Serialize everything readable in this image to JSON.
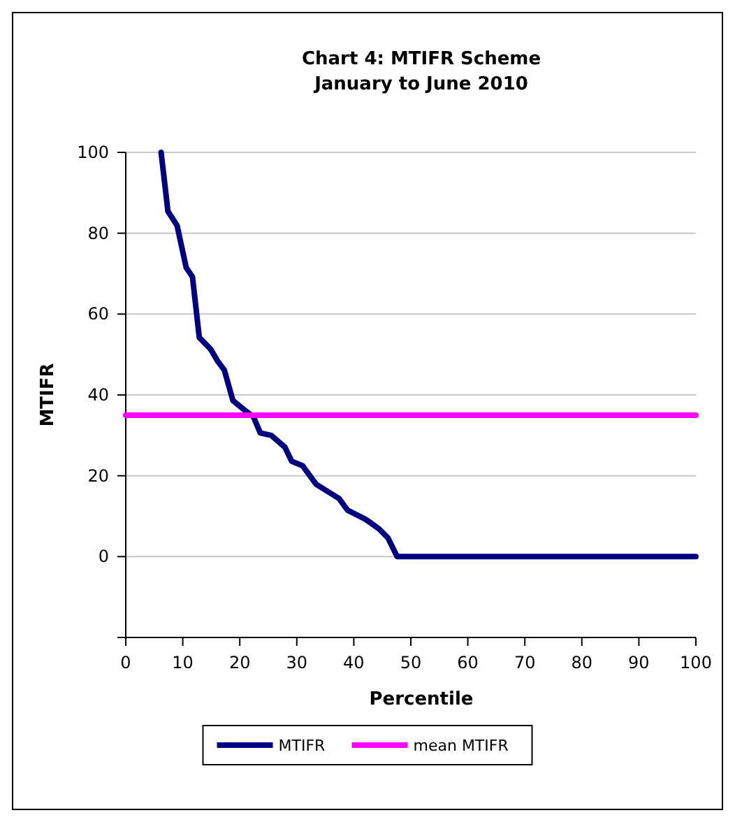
{
  "chart_data": {
    "type": "line",
    "title": "Chart 4: MTIFR Scheme\nJanuary to June 2010",
    "xlabel": "Percentile",
    "ylabel": "MTIFR",
    "xlim": [
      0,
      100
    ],
    "xticks": [
      0,
      10,
      20,
      30,
      40,
      50,
      60,
      70,
      80,
      90,
      100
    ],
    "ylim": [
      -20,
      100
    ],
    "yticks": [
      {
        "value": -20,
        "label": null
      },
      0,
      20,
      40,
      60,
      80,
      100
    ],
    "grid": "y",
    "legend": "bottom",
    "marker": "none",
    "line_style": "solid",
    "series": [
      {
        "name": "MTIFR",
        "color": "#000080",
        "x": [
          6.2,
          7.4,
          9.0,
          10.6,
          11.7,
          12.9,
          14.9,
          16.1,
          17.3,
          18.8,
          20.8,
          22.4,
          23.6,
          25.5,
          27.9,
          29.1,
          31.0,
          33.4,
          37.4,
          38.9,
          42.1,
          44.4,
          46.0,
          47.6,
          100
        ],
        "values": [
          100,
          85.4,
          81.9,
          71.5,
          69.2,
          54.2,
          51.3,
          48.4,
          46.1,
          38.6,
          36.3,
          34.6,
          30.6,
          30.0,
          27.1,
          23.6,
          22.5,
          17.9,
          14.4,
          11.5,
          9.2,
          6.9,
          4.6,
          0,
          0
        ]
      },
      {
        "name": "mean MTIFR",
        "color": "#ff00ff",
        "x": [
          0,
          100
        ],
        "values": [
          35,
          35
        ]
      }
    ]
  }
}
